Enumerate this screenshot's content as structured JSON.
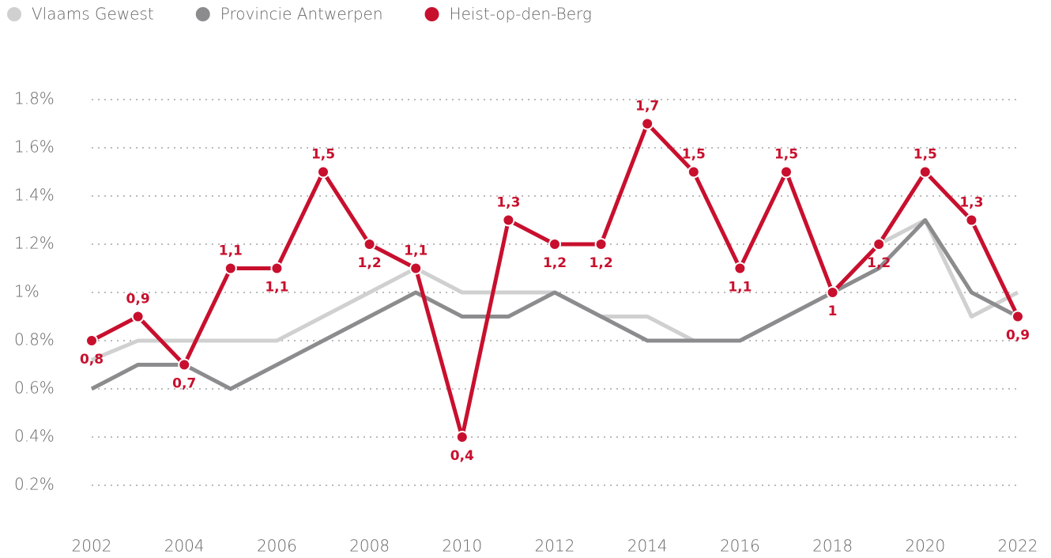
{
  "chart_data": {
    "type": "line",
    "x": [
      2002,
      2003,
      2004,
      2005,
      2006,
      2007,
      2008,
      2009,
      2010,
      2011,
      2012,
      2013,
      2014,
      2015,
      2016,
      2017,
      2018,
      2019,
      2020,
      2021,
      2022
    ],
    "series": [
      {
        "name": "Vlaams Gewest",
        "color": "#d0d0d0",
        "values": [
          0.72,
          0.8,
          0.8,
          0.8,
          0.8,
          0.9,
          1.0,
          1.1,
          1.0,
          1.0,
          1.0,
          0.9,
          0.9,
          0.8,
          0.8,
          0.9,
          1.0,
          1.2,
          1.3,
          0.9,
          1.0
        ]
      },
      {
        "name": "Provincie Antwerpen",
        "color": "#8c8c8e",
        "values": [
          0.6,
          0.7,
          0.7,
          0.6,
          0.7,
          0.8,
          0.9,
          1.0,
          0.9,
          0.9,
          1.0,
          0.9,
          0.8,
          0.8,
          0.8,
          0.9,
          1.0,
          1.1,
          1.3,
          1.0,
          0.9
        ]
      },
      {
        "name": "Heist-op-den-Berg",
        "color": "#c8102e",
        "markers": true,
        "values": [
          0.8,
          0.9,
          0.7,
          1.1,
          1.1,
          1.5,
          1.2,
          1.1,
          0.4,
          1.3,
          1.2,
          1.2,
          1.7,
          1.5,
          1.1,
          1.5,
          1.0,
          1.2,
          1.5,
          1.3,
          0.9
        ],
        "value_labels": [
          "0,8",
          "0,9",
          "0,7",
          "1,1",
          "1,1",
          "1,5",
          "1,2",
          "1,1",
          "0,4",
          "1,3",
          "1,2",
          "1,2",
          "1,7",
          "1,5",
          "1,1",
          "1,5",
          "1",
          "1,2",
          "1,5",
          "1,3",
          "0,9"
        ]
      }
    ],
    "xlim": [
      2002,
      2022
    ],
    "xticks": [
      2002,
      2004,
      2006,
      2008,
      2010,
      2012,
      2014,
      2016,
      2018,
      2020,
      2022
    ],
    "ylim": [
      0,
      1.8
    ],
    "yticks": [
      {
        "value": 0.2,
        "label": "0.2%"
      },
      {
        "value": 0.4,
        "label": "0.4%"
      },
      {
        "value": 0.6,
        "label": "0.6%"
      },
      {
        "value": 0.8,
        "label": "0.8%"
      },
      {
        "value": 1,
        "label": "1%"
      },
      {
        "value": 1.2,
        "label": "1.2%"
      },
      {
        "value": 1.4,
        "label": "1.4%"
      },
      {
        "value": 1.6,
        "label": "1.6%"
      },
      {
        "value": 1.8,
        "label": "1.8%"
      }
    ],
    "grid": true,
    "legend": "top-left"
  }
}
